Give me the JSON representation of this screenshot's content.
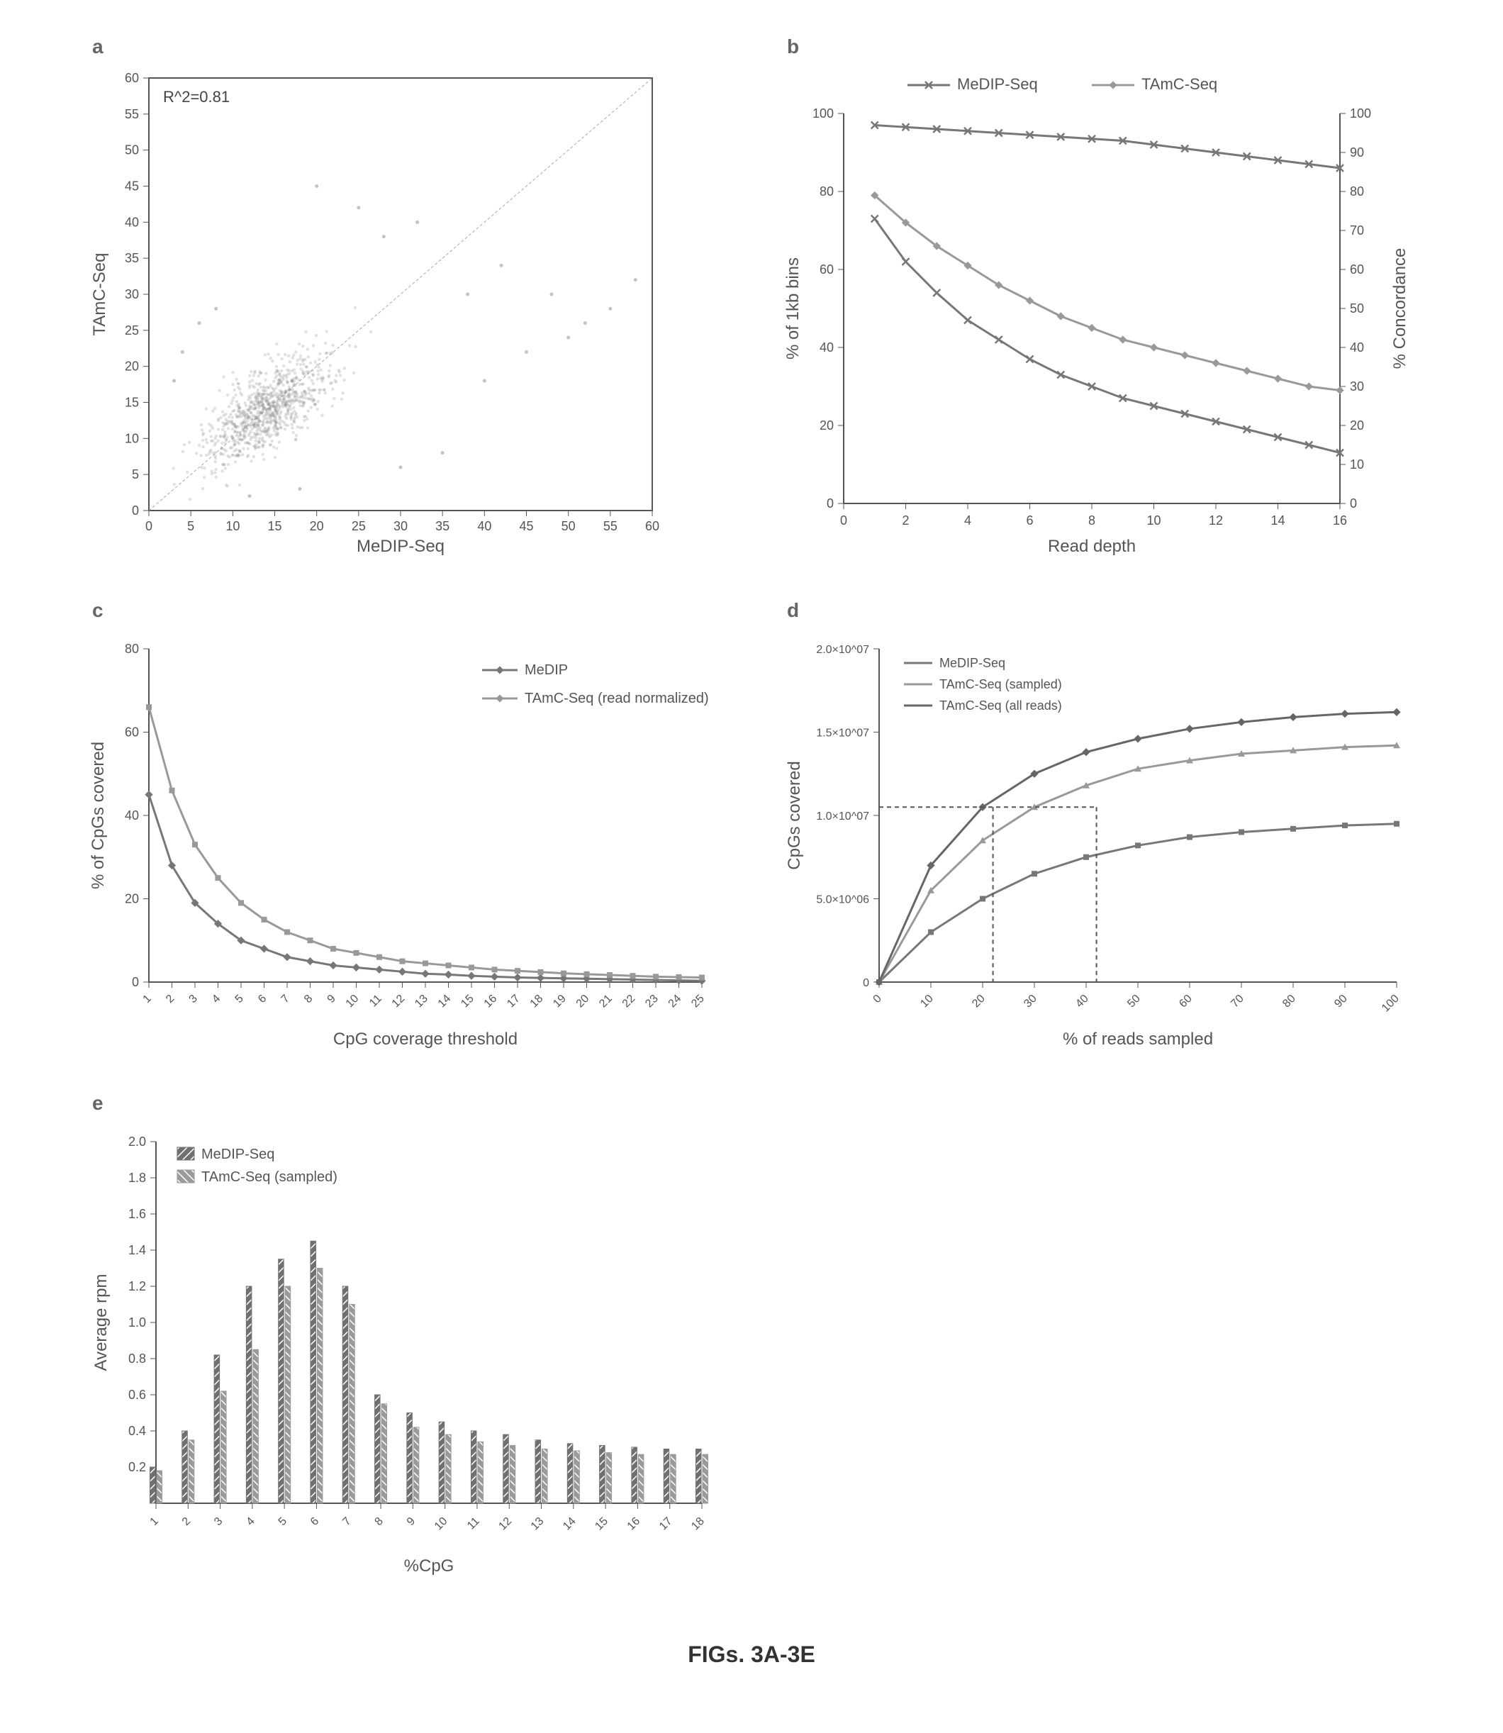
{
  "caption": "FIGs. 3A-3E",
  "colors": {
    "background": "#ffffff",
    "axis": "#555555",
    "grid": "#cccccc",
    "scatter_fill": "#888888",
    "scatter_line": "rgba(80,80,80,0.3)",
    "series_medip": "#777777",
    "series_tamc": "#999999",
    "series_tamc_all": "#666666",
    "bar_medip": "#707070",
    "bar_tamc": "#9a9a9a",
    "dashed": "#555555"
  },
  "panel_a": {
    "label": "a",
    "type": "scatter",
    "annotation": "R^2=0.81",
    "xlabel": "MeDIP-Seq",
    "ylabel": "TAmC-Seq",
    "xlim": [
      0,
      60
    ],
    "ylim": [
      0,
      60
    ],
    "xticks": [
      0,
      5,
      10,
      15,
      20,
      25,
      30,
      35,
      40,
      45,
      50,
      55,
      60
    ],
    "yticks": [
      0,
      5,
      10,
      15,
      20,
      25,
      30,
      35,
      40,
      45,
      50,
      55,
      60
    ],
    "diagonal": true,
    "cloud_center": [
      14,
      14
    ],
    "cloud_spread": [
      9,
      7
    ],
    "n_points": 900,
    "outliers": [
      [
        45,
        22
      ],
      [
        50,
        24
      ],
      [
        55,
        28
      ],
      [
        40,
        18
      ],
      [
        48,
        30
      ],
      [
        52,
        26
      ],
      [
        58,
        32
      ],
      [
        38,
        30
      ],
      [
        42,
        34
      ],
      [
        35,
        8
      ],
      [
        30,
        6
      ],
      [
        28,
        38
      ],
      [
        32,
        40
      ],
      [
        25,
        42
      ],
      [
        20,
        45
      ],
      [
        18,
        3
      ],
      [
        12,
        2
      ],
      [
        8,
        28
      ],
      [
        6,
        26
      ],
      [
        4,
        22
      ],
      [
        3,
        18
      ]
    ]
  },
  "panel_b": {
    "label": "b",
    "type": "line",
    "legend": [
      "MeDIP-Seq",
      "TAmC-Seq"
    ],
    "xlabel": "Read depth",
    "ylabel_left": "% of 1kb bins",
    "ylabel_right": "% Concordance",
    "xlim": [
      0,
      16
    ],
    "xtick_step": 2,
    "ylim_left": [
      0,
      100
    ],
    "ytick_left_step": 20,
    "ylim_right": [
      0,
      100
    ],
    "ytick_right_step": 10,
    "x": [
      1,
      2,
      3,
      4,
      5,
      6,
      7,
      8,
      9,
      10,
      11,
      12,
      13,
      14,
      15,
      16
    ],
    "concordance": [
      97,
      96.5,
      96,
      95.5,
      95,
      94.5,
      94,
      93.5,
      93,
      92,
      91,
      90,
      89,
      88,
      87,
      86
    ],
    "bins_medip": [
      73,
      62,
      54,
      47,
      42,
      37,
      33,
      30,
      27,
      25,
      23,
      21,
      19,
      17,
      15,
      13
    ],
    "bins_tamc": [
      79,
      72,
      66,
      61,
      56,
      52,
      48,
      45,
      42,
      40,
      38,
      36,
      34,
      32,
      30,
      29
    ]
  },
  "panel_c": {
    "label": "c",
    "type": "line",
    "legend": [
      "MeDIP",
      "TAmC-Seq (read normalized)"
    ],
    "xlabel": "CpG coverage threshold",
    "ylabel": "% of CpGs covered",
    "xlim": [
      1,
      25
    ],
    "ylim": [
      0,
      80
    ],
    "xticks": [
      1,
      2,
      3,
      4,
      5,
      6,
      7,
      8,
      9,
      10,
      11,
      12,
      13,
      14,
      15,
      16,
      17,
      18,
      19,
      20,
      21,
      22,
      23,
      24,
      25
    ],
    "yticks": [
      0,
      20,
      40,
      60,
      80
    ],
    "medip": [
      45,
      28,
      19,
      14,
      10,
      8,
      6,
      5,
      4,
      3.5,
      3,
      2.5,
      2,
      1.8,
      1.5,
      1.3,
      1.1,
      1,
      0.9,
      0.8,
      0.7,
      0.6,
      0.5,
      0.4,
      0.3
    ],
    "tamc": [
      66,
      46,
      33,
      25,
      19,
      15,
      12,
      10,
      8,
      7,
      6,
      5,
      4.5,
      4,
      3.5,
      3,
      2.7,
      2.4,
      2.1,
      1.9,
      1.7,
      1.5,
      1.3,
      1.2,
      1.1
    ]
  },
  "panel_d": {
    "label": "d",
    "type": "line",
    "legend": [
      "MeDIP-Seq",
      "TAmC-Seq (sampled)",
      "TAmC-Seq (all reads)"
    ],
    "xlabel": "% of reads sampled",
    "ylabel": "CpGs covered",
    "xlim": [
      0,
      100
    ],
    "xtick_step": 10,
    "ylim": [
      0,
      20000000.0
    ],
    "yticks_labels": [
      "0",
      "5.0×10^06",
      "1.0×10^07",
      "1.5×10^07",
      "2.0×10^07"
    ],
    "yticks_vals": [
      0,
      5000000.0,
      10000000.0,
      15000000.0,
      20000000.0
    ],
    "x": [
      0,
      10,
      20,
      30,
      40,
      50,
      60,
      70,
      80,
      90,
      100
    ],
    "medip": [
      0,
      3000000.0,
      5000000.0,
      6500000.0,
      7500000.0,
      8200000.0,
      8700000.0,
      9000000.0,
      9200000.0,
      9400000.0,
      9500000.0
    ],
    "tamc_sampled": [
      0,
      5500000.0,
      8500000.0,
      10500000.0,
      11800000.0,
      12800000.0,
      13300000.0,
      13700000.0,
      13900000.0,
      14100000.0,
      14200000.0
    ],
    "tamc_all": [
      0,
      7000000.0,
      10500000.0,
      12500000.0,
      13800000.0,
      14600000.0,
      15200000.0,
      15600000.0,
      15900000.0,
      16100000.0,
      16200000.0
    ],
    "dashed_y": 10500000.0,
    "dashed_x1": 22,
    "dashed_x2": 42
  },
  "panel_e": {
    "label": "e",
    "type": "grouped-bar",
    "legend": [
      "MeDIP-Seq",
      "TAmC-Seq (sampled)"
    ],
    "xlabel": "%CpG",
    "ylabel": "Average rpm",
    "xlim": [
      1,
      18
    ],
    "ylim": [
      0,
      2.0
    ],
    "xticks": [
      1,
      2,
      3,
      4,
      5,
      6,
      7,
      8,
      9,
      10,
      11,
      12,
      13,
      14,
      15,
      16,
      17,
      18
    ],
    "yticks": [
      0.2,
      0.4,
      0.6,
      0.8,
      1.0,
      1.2,
      1.4,
      1.6,
      1.8,
      2.0
    ],
    "medip": [
      0.2,
      0.4,
      0.82,
      1.2,
      1.35,
      1.45,
      1.2,
      0.6,
      0.5,
      0.45,
      0.4,
      0.38,
      0.35,
      0.33,
      0.32,
      0.31,
      0.3,
      0.3
    ],
    "tamc": [
      0.18,
      0.35,
      0.62,
      0.85,
      1.2,
      1.3,
      1.1,
      0.55,
      0.42,
      0.38,
      0.34,
      0.32,
      0.3,
      0.29,
      0.28,
      0.27,
      0.27,
      0.27
    ],
    "bar_width": 0.35
  }
}
